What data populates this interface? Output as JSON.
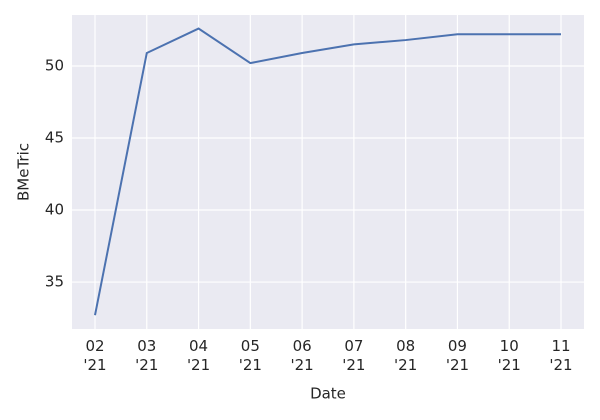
{
  "chart_data": {
    "type": "line",
    "x_label": "Date",
    "y_label": "BMeTric",
    "categories": [
      "02\n'21",
      "03\n'21",
      "04\n'21",
      "05\n'21",
      "06\n'21",
      "07\n'21",
      "08\n'21",
      "09\n'21",
      "10\n'21",
      "11\n'21"
    ],
    "series": [
      {
        "color": "#4c72b0",
        "values": [
          32.7,
          50.9,
          52.6,
          50.2,
          50.9,
          51.5,
          51.8,
          52.2,
          52.2,
          52.2
        ]
      }
    ],
    "ylim": [
      31.74,
      53.54
    ],
    "yticks": [
      35,
      40,
      45,
      50
    ],
    "grid": true
  }
}
